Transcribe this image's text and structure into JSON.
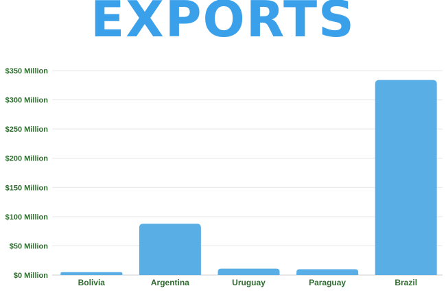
{
  "colors": {
    "title": "#3ba0ea",
    "bar": "#5aaee6",
    "label": "#2e6b2e",
    "grid": "#e6e6e6",
    "axis": "#cfcfcf"
  },
  "chart_data": {
    "type": "bar",
    "title": "EXPORTS",
    "xlabel": "",
    "ylabel": "",
    "categories": [
      "Bolivia",
      "Argentina",
      "Uruguay",
      "Paraguay",
      "Brazil"
    ],
    "values": [
      5,
      88,
      11,
      10,
      334
    ],
    "ylim": [
      0,
      350
    ],
    "yticks": [
      0,
      50,
      100,
      150,
      200,
      250,
      300,
      350
    ],
    "ytick_labels": [
      "$0 Million",
      "$50 Million",
      "$100 Million",
      "$150 Million",
      "$200 Million",
      "$250 Million",
      "$300 Million",
      "$350 Million"
    ],
    "grid": true,
    "legend": "none"
  }
}
